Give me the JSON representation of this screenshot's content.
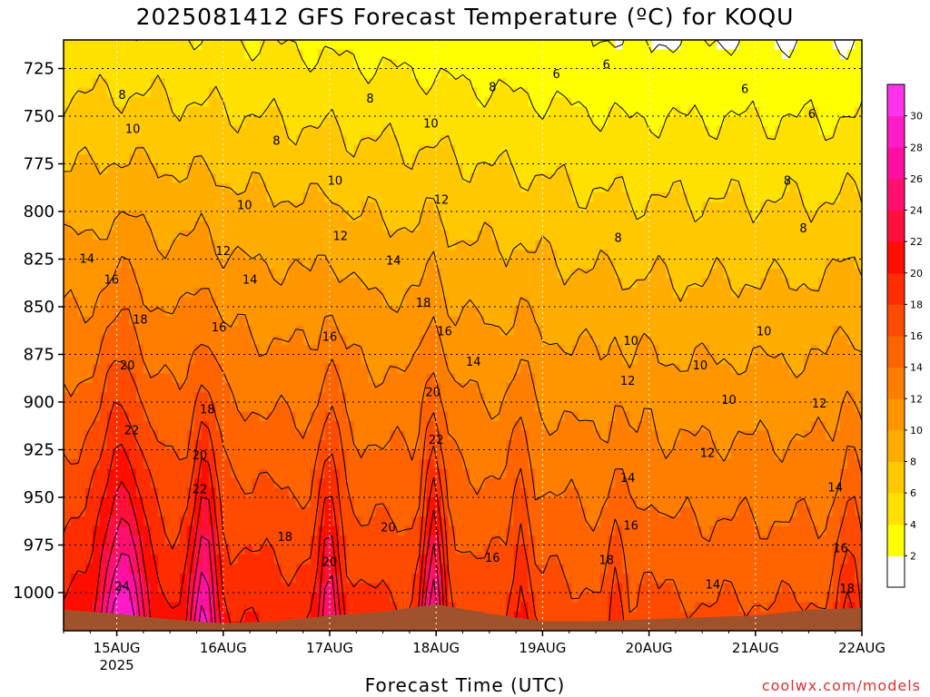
{
  "title": "2025081412 GFS Forecast Temperature (ºC) for KOQU",
  "xlabel": "Forecast Time (UTC)",
  "credit": "coolwx.com/models",
  "chart_data": {
    "type": "heatmap",
    "title": "2025081412 GFS Forecast Temperature (ºC) for KOQU",
    "xlabel": "Forecast Time (UTC)",
    "ylabel": "",
    "x_ticks": [
      "15AUG",
      "16AUG",
      "17AUG",
      "18AUG",
      "19AUG",
      "20AUG",
      "21AUG",
      "22AUG"
    ],
    "x_tick_sublabel": "2025",
    "y_ticks": [
      725,
      750,
      775,
      800,
      825,
      850,
      875,
      900,
      925,
      950,
      975,
      1000
    ],
    "y_axis_inverted": true,
    "xlim_days": [
      14.5,
      22.0
    ],
    "ylim_hpa": [
      710,
      1020
    ],
    "grid": true,
    "colorbar": {
      "ticks": [
        2,
        4,
        6,
        8,
        10,
        12,
        14,
        16,
        18,
        20,
        22,
        24,
        26,
        28,
        30
      ],
      "colors": [
        "#ffffff",
        "#ffff00",
        "#ffe100",
        "#ffc800",
        "#ffad00",
        "#ff9600",
        "#ff7e00",
        "#ff6400",
        "#ff4b00",
        "#ff2d00",
        "#ff0d00",
        "#ff0f3c",
        "#ff0f6e",
        "#ff10a0",
        "#ff1bc8",
        "#ff33ea"
      ]
    },
    "contour_labels": [
      {
        "value": 8,
        "day": 15.05,
        "p": 739
      },
      {
        "value": 8,
        "day": 16.5,
        "p": 763
      },
      {
        "value": 8,
        "day": 17.38,
        "p": 741
      },
      {
        "value": 8,
        "day": 18.53,
        "p": 735
      },
      {
        "value": 8,
        "day": 19.71,
        "p": 814
      },
      {
        "value": 8,
        "day": 21.3,
        "p": 784
      },
      {
        "value": 8,
        "day": 21.45,
        "p": 809
      },
      {
        "value": 6,
        "day": 19.13,
        "p": 728
      },
      {
        "value": 6,
        "day": 19.6,
        "p": 723
      },
      {
        "value": 6,
        "day": 20.9,
        "p": 736
      },
      {
        "value": 6,
        "day": 21.53,
        "p": 749
      },
      {
        "value": 10,
        "day": 15.15,
        "p": 757
      },
      {
        "value": 10,
        "day": 17.05,
        "p": 784
      },
      {
        "value": 10,
        "day": 16.2,
        "p": 797
      },
      {
        "value": 10,
        "day": 17.95,
        "p": 754
      },
      {
        "value": 10,
        "day": 19.83,
        "p": 868
      },
      {
        "value": 10,
        "day": 20.48,
        "p": 881
      },
      {
        "value": 10,
        "day": 20.75,
        "p": 899
      },
      {
        "value": 10,
        "day": 21.08,
        "p": 863
      },
      {
        "value": 12,
        "day": 16.0,
        "p": 821
      },
      {
        "value": 12,
        "day": 17.1,
        "p": 813
      },
      {
        "value": 12,
        "day": 18.05,
        "p": 794
      },
      {
        "value": 12,
        "day": 19.8,
        "p": 889
      },
      {
        "value": 12,
        "day": 20.55,
        "p": 927
      },
      {
        "value": 12,
        "day": 21.6,
        "p": 901
      },
      {
        "value": 14,
        "day": 14.72,
        "p": 825
      },
      {
        "value": 14,
        "day": 16.25,
        "p": 836
      },
      {
        "value": 14,
        "day": 17.6,
        "p": 826
      },
      {
        "value": 14,
        "day": 18.35,
        "p": 879
      },
      {
        "value": 14,
        "day": 19.8,
        "p": 940
      },
      {
        "value": 14,
        "day": 20.6,
        "p": 996
      },
      {
        "value": 14,
        "day": 21.75,
        "p": 945
      },
      {
        "value": 16,
        "day": 14.95,
        "p": 836
      },
      {
        "value": 16,
        "day": 15.96,
        "p": 861
      },
      {
        "value": 16,
        "day": 17.0,
        "p": 866
      },
      {
        "value": 16,
        "day": 18.08,
        "p": 863
      },
      {
        "value": 16,
        "day": 18.53,
        "p": 982
      },
      {
        "value": 16,
        "day": 19.83,
        "p": 965
      },
      {
        "value": 16,
        "day": 21.8,
        "p": 977
      },
      {
        "value": 18,
        "day": 15.22,
        "p": 857
      },
      {
        "value": 18,
        "day": 15.85,
        "p": 904
      },
      {
        "value": 18,
        "day": 16.58,
        "p": 971
      },
      {
        "value": 18,
        "day": 17.88,
        "p": 848
      },
      {
        "value": 18,
        "day": 19.6,
        "p": 983
      },
      {
        "value": 18,
        "day": 21.86,
        "p": 998
      },
      {
        "value": 20,
        "day": 15.1,
        "p": 881
      },
      {
        "value": 20,
        "day": 15.78,
        "p": 928
      },
      {
        "value": 20,
        "day": 17.0,
        "p": 984
      },
      {
        "value": 20,
        "day": 17.55,
        "p": 966
      },
      {
        "value": 20,
        "day": 17.97,
        "p": 895
      },
      {
        "value": 22,
        "day": 15.14,
        "p": 915
      },
      {
        "value": 22,
        "day": 15.78,
        "p": 946
      },
      {
        "value": 22,
        "day": 18.0,
        "p": 920
      },
      {
        "value": 24,
        "day": 15.05,
        "p": 997
      }
    ]
  }
}
